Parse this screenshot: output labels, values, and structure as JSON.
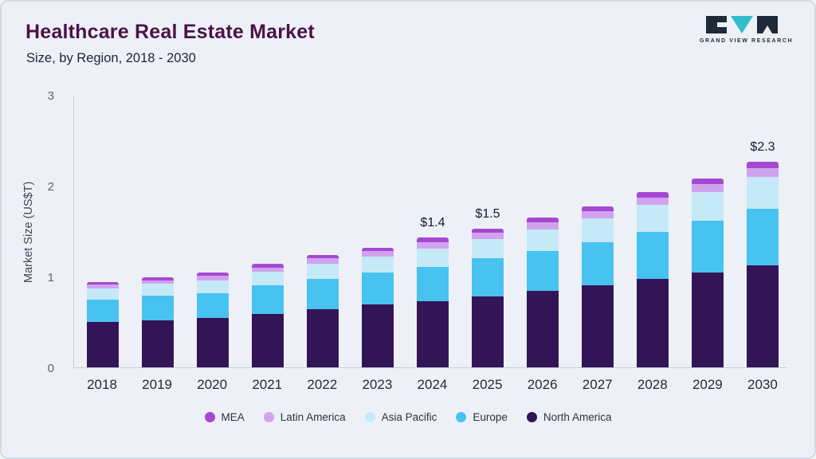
{
  "page": {
    "title": "Healthcare Real Estate Market",
    "subtitle": "Size, by Region, 2018 - 2030",
    "logo_text": "GRAND VIEW RESEARCH"
  },
  "chart_data": {
    "type": "bar",
    "stacked": true,
    "title": "Healthcare Real Estate Market Size, by Region, 2018 - 2030",
    "xlabel": "",
    "ylabel": "Market Size (US$T)",
    "ylim": [
      0,
      3
    ],
    "yticks": [
      0,
      1,
      2,
      3
    ],
    "grid": false,
    "legend_position": "bottom",
    "categories": [
      "2018",
      "2019",
      "2020",
      "2021",
      "2022",
      "2023",
      "2024",
      "2025",
      "2026",
      "2027",
      "2028",
      "2029",
      "2030"
    ],
    "series": [
      {
        "name": "North America",
        "color": "#331557",
        "values": [
          0.5,
          0.52,
          0.54,
          0.59,
          0.64,
          0.69,
          0.73,
          0.78,
          0.84,
          0.9,
          0.97,
          1.04,
          1.12
        ]
      },
      {
        "name": "Europe",
        "color": "#48c2f0",
        "values": [
          0.25,
          0.27,
          0.28,
          0.31,
          0.33,
          0.35,
          0.38,
          0.42,
          0.44,
          0.48,
          0.52,
          0.57,
          0.63
        ]
      },
      {
        "name": "Asia Pacific",
        "color": "#c6e9f8",
        "values": [
          0.12,
          0.13,
          0.14,
          0.15,
          0.17,
          0.18,
          0.2,
          0.21,
          0.24,
          0.26,
          0.3,
          0.32,
          0.35
        ]
      },
      {
        "name": "Latin America",
        "color": "#d0a3ee",
        "values": [
          0.04,
          0.04,
          0.05,
          0.05,
          0.06,
          0.06,
          0.07,
          0.07,
          0.08,
          0.08,
          0.08,
          0.09,
          0.09
        ]
      },
      {
        "name": "MEA",
        "color": "#a649d2",
        "values": [
          0.03,
          0.03,
          0.03,
          0.04,
          0.04,
          0.04,
          0.05,
          0.05,
          0.05,
          0.05,
          0.06,
          0.06,
          0.07
        ]
      }
    ],
    "totals": [
      0.94,
      0.99,
      1.04,
      1.14,
      1.24,
      1.32,
      1.43,
      1.53,
      1.65,
      1.77,
      1.93,
      2.08,
      2.26
    ],
    "annotations": [
      {
        "category": "2024",
        "label": "$1.4"
      },
      {
        "category": "2025",
        "label": "$1.5"
      },
      {
        "category": "2030",
        "label": "$2.3"
      }
    ],
    "legend": [
      "MEA",
      "Latin America",
      "Asia Pacific",
      "Europe",
      "North America"
    ]
  }
}
